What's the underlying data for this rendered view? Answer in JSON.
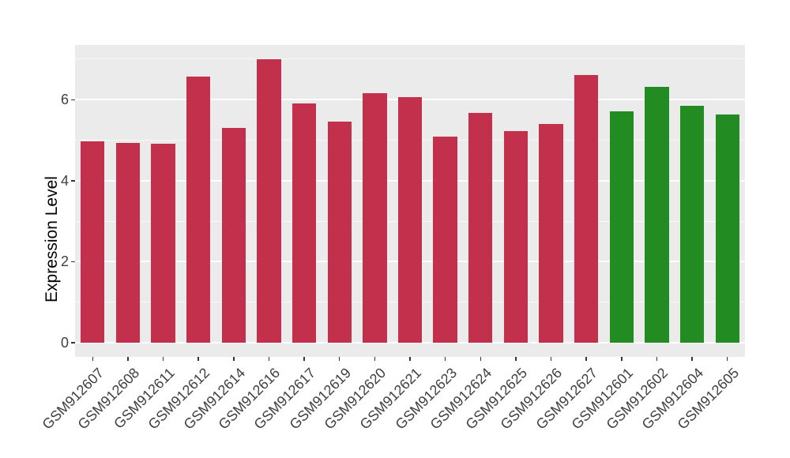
{
  "chart_data": {
    "type": "bar",
    "title": "",
    "xlabel": "",
    "ylabel": "Expression Level",
    "categories": [
      "GSM912607",
      "GSM912608",
      "GSM912611",
      "GSM912612",
      "GSM912614",
      "GSM912616",
      "GSM912617",
      "GSM912619",
      "GSM912620",
      "GSM912621",
      "GSM912623",
      "GSM912624",
      "GSM912625",
      "GSM912626",
      "GSM912627",
      "GSM912601",
      "GSM912602",
      "GSM912604",
      "GSM912605"
    ],
    "values": [
      4.98,
      4.93,
      4.91,
      6.58,
      5.3,
      7.0,
      5.9,
      5.45,
      6.17,
      6.06,
      5.08,
      5.68,
      5.22,
      5.4,
      6.6,
      5.71,
      6.32,
      5.84,
      5.63
    ],
    "bar_color_groups": [
      0,
      0,
      0,
      0,
      0,
      0,
      0,
      0,
      0,
      0,
      0,
      0,
      0,
      0,
      0,
      1,
      1,
      1,
      1
    ],
    "group_colors": [
      "#C3304C",
      "#228B22"
    ],
    "ylim": [
      -0.35,
      7.35
    ],
    "yticks": [
      0,
      2,
      4,
      6
    ],
    "yticks_minor": [
      1,
      3,
      5,
      7
    ],
    "x_label_rotation_deg": 45,
    "grid": "on",
    "legend_position": "none",
    "panel_background": "#EBEBEB",
    "gridline_major_color": "#FFFFFF",
    "gridline_minor_color": "rgba(255,255,255,0.65)",
    "axis_text_color": "#404040",
    "tick_mark_color": "#333333",
    "bar_width_fraction": 0.68
  }
}
